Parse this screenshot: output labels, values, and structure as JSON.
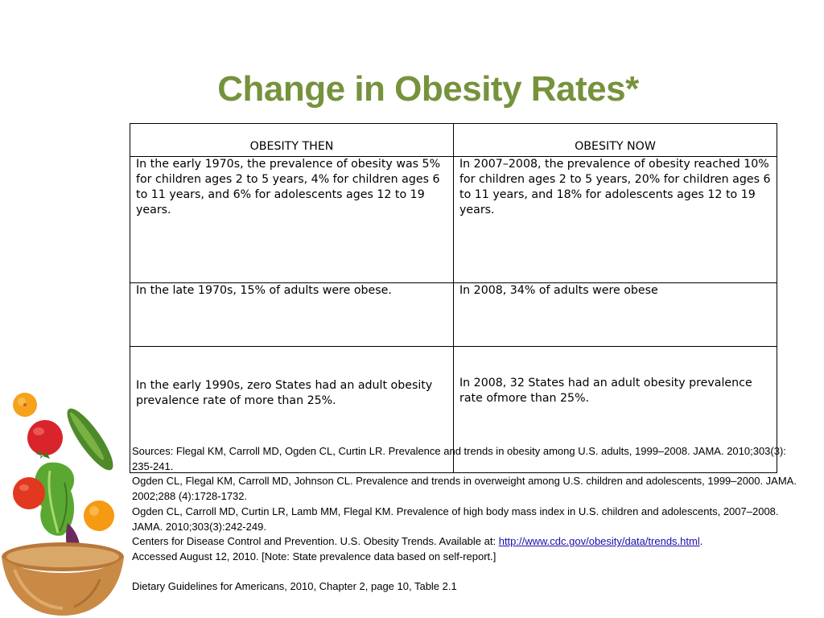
{
  "title": "Change in Obesity Rates*",
  "table": {
    "headers": [
      "OBESITY THEN",
      "OBESITY NOW"
    ],
    "rows": [
      [
        "In the early 1970s, the prevalence of obesity was 5% for children ages 2 to 5 years, 4% for children ages 6 to 11 years, and 6% for adolescents ages 12 to 19 years.",
        "In 2007–2008, the prevalence of obesity reached 10% for children ages 2 to 5 years, 20% for children ages 6 to 11 years, and 18% for adolescents ages 12 to 19 years."
      ],
      [
        "In the late 1970s, 15% of adults were obese.",
        "In 2008, 34% of adults were obese"
      ],
      [
        "In the early 1990s, zero States had an adult obesity prevalence rate of more than 25%.",
        "In 2008, 32 States had an adult obesity prevalence rate ofmore than 25%."
      ]
    ]
  },
  "sources": {
    "line1": "Sources: Flegal KM, Carroll MD, Ogden CL, Curtin LR. Prevalence and trends in obesity among U.S. adults, 1999–2008. JAMA. 2010;303(3): 235-241.",
    "line2": "Ogden CL, Flegal KM, Carroll MD, Johnson CL. Prevalence and trends in overweight among U.S.  children and adolescents, 1999–2000. JAMA. 2002;288 (4):1728-1732.",
    "line3": "Ogden CL, Carroll MD, Curtin LR, Lamb MM,  Flegal KM. Prevalence of high body mass index in U.S.  children and adolescents, 2007–2008. JAMA. 2010;303(3):242-249.",
    "line4_prefix": "Centers for Disease Control and Prevention. U.S. Obesity Trends.  Available at: ",
    "line4_link": "http://www.cdc.gov/obesity/data/trends.html",
    "line4_suffix": ".",
    "line5": "Accessed August 12, 2010.  [Note: State prevalence data based on self-report.]",
    "line6": "Dietary Guidelines for Americans, 2010, Chapter 2, page 10, Table 2.1"
  },
  "colors": {
    "title": "#76923c",
    "link": "#1a0dab"
  }
}
